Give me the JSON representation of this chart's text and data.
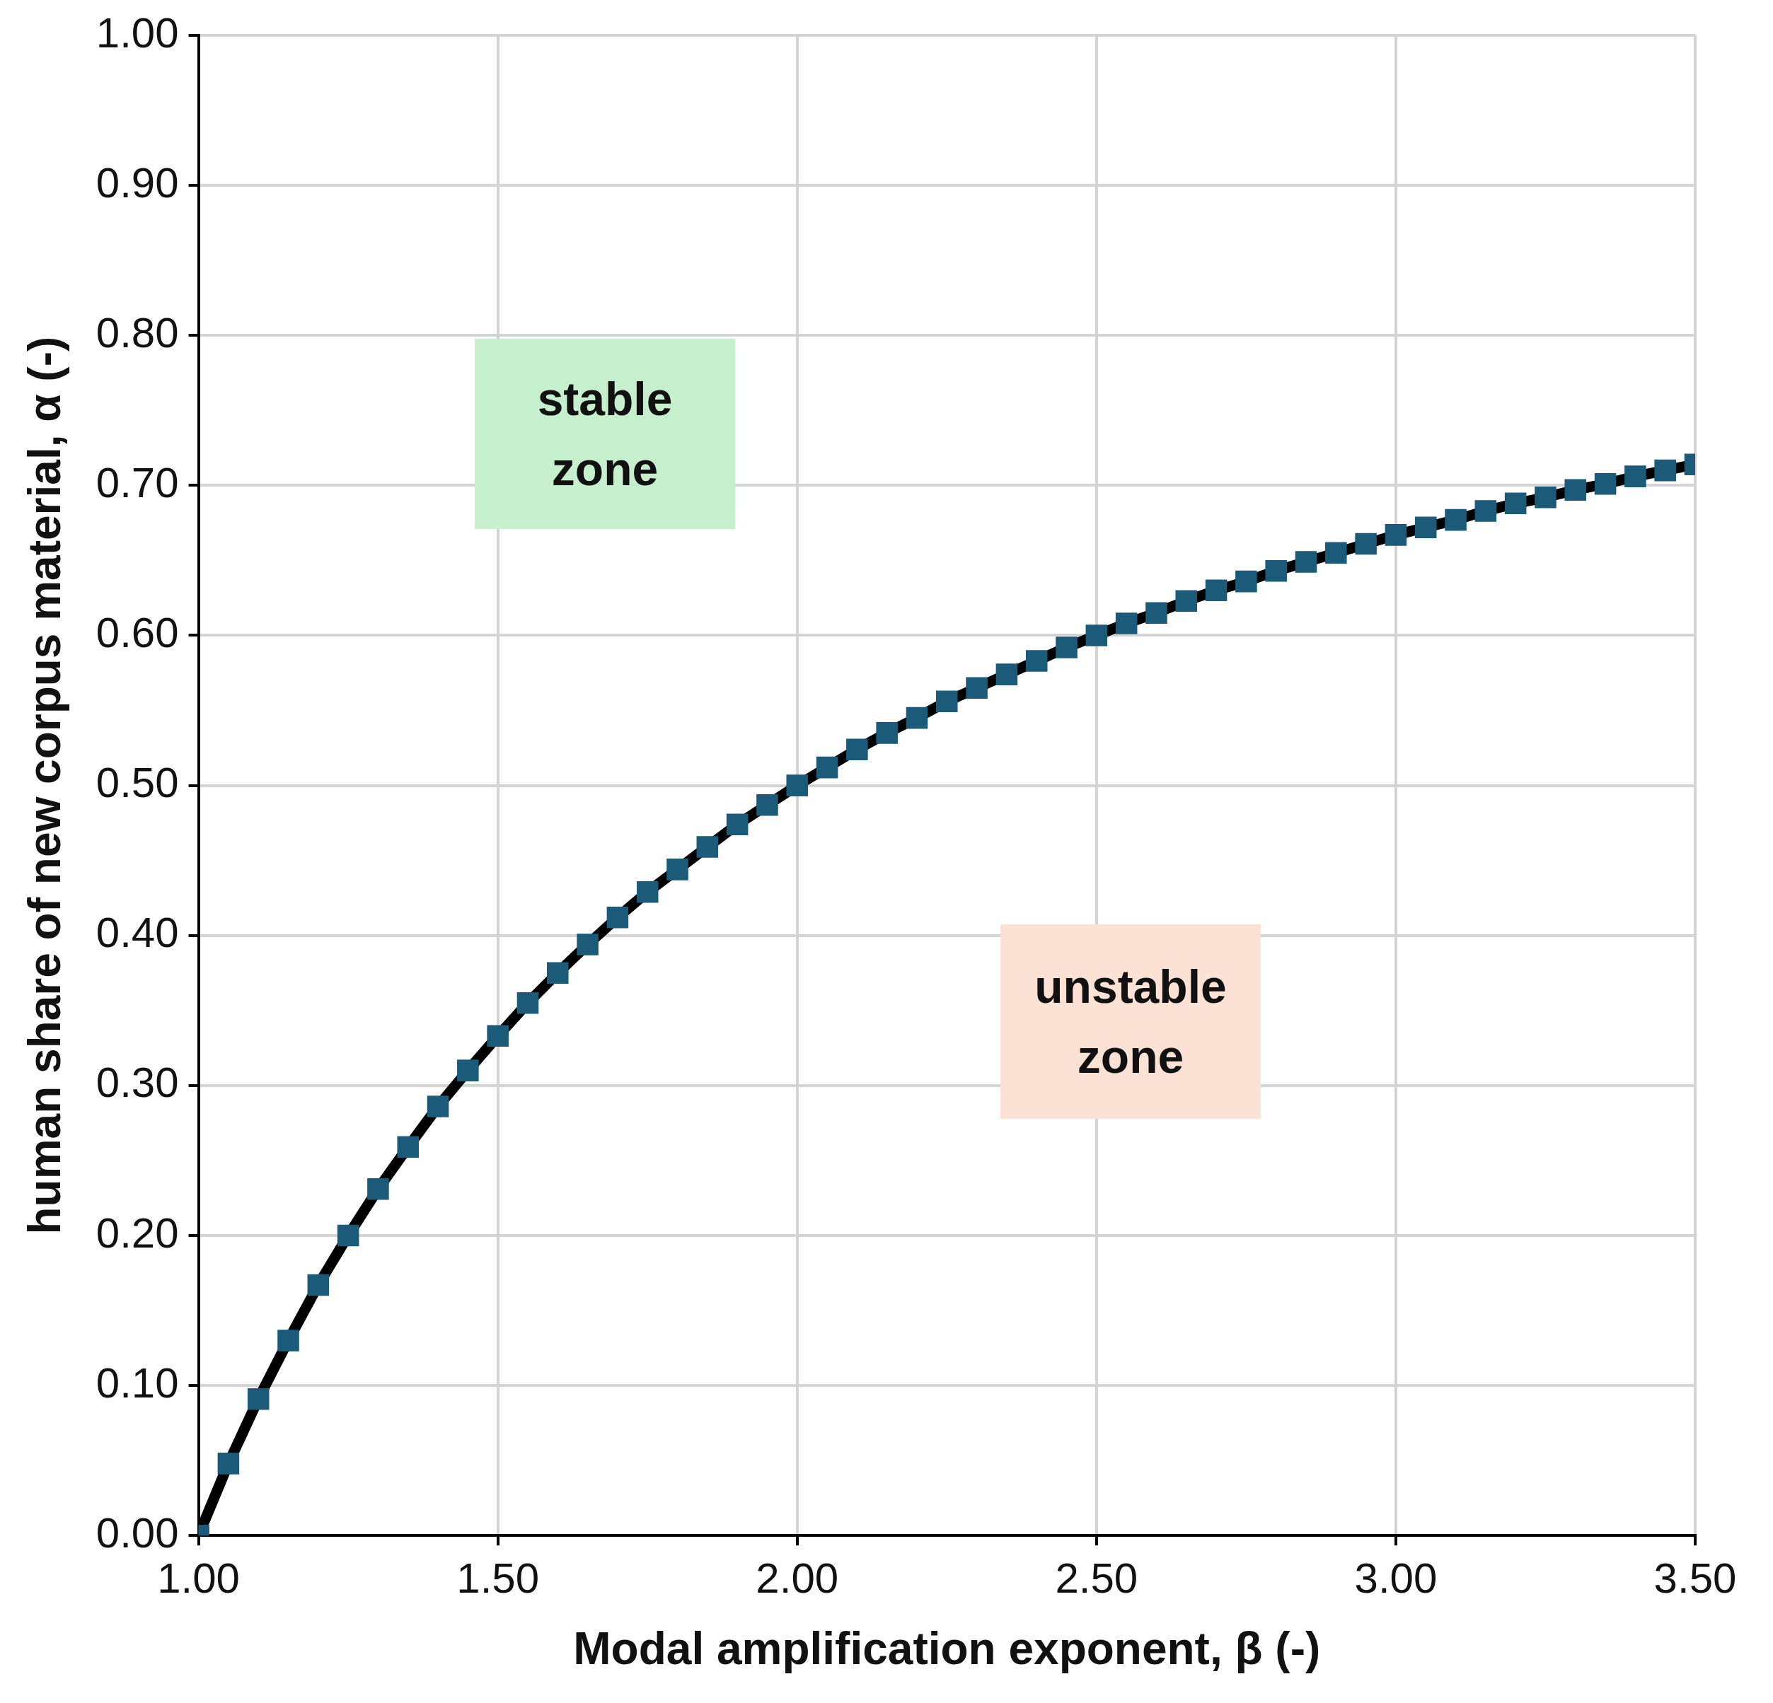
{
  "chart_data": {
    "type": "line",
    "xlabel": "Modal amplification exponent, β (-)",
    "ylabel": "human share of new corpus material, α (-)",
    "x": [
      1.0,
      1.05,
      1.1,
      1.15,
      1.2,
      1.25,
      1.3,
      1.35,
      1.4,
      1.45,
      1.5,
      1.55,
      1.6,
      1.65,
      1.7,
      1.75,
      1.8,
      1.85,
      1.9,
      1.95,
      2.0,
      2.05,
      2.1,
      2.15,
      2.2,
      2.25,
      2.3,
      2.35,
      2.4,
      2.45,
      2.5,
      2.55,
      2.6,
      2.65,
      2.7,
      2.75,
      2.8,
      2.85,
      2.9,
      2.95,
      3.0,
      3.05,
      3.1,
      3.15,
      3.2,
      3.25,
      3.3,
      3.35,
      3.4,
      3.45,
      3.5
    ],
    "series": [
      {
        "color": "#1b5a78",
        "values": [
          0.0,
          0.048,
          0.091,
          0.13,
          0.167,
          0.2,
          0.231,
          0.259,
          0.286,
          0.31,
          0.333,
          0.355,
          0.375,
          0.394,
          0.412,
          0.429,
          0.444,
          0.459,
          0.474,
          0.487,
          0.5,
          0.512,
          0.524,
          0.535,
          0.545,
          0.556,
          0.565,
          0.574,
          0.583,
          0.592,
          0.6,
          0.608,
          0.615,
          0.623,
          0.63,
          0.636,
          0.643,
          0.649,
          0.655,
          0.661,
          0.667,
          0.672,
          0.677,
          0.683,
          0.688,
          0.692,
          0.697,
          0.701,
          0.706,
          0.71,
          0.714
        ]
      }
    ],
    "xlim": [
      1.0,
      3.5
    ],
    "xticks": [
      {
        "value": 1.0,
        "label": "1.00"
      },
      {
        "value": 1.5,
        "label": "1.50"
      },
      {
        "value": 2.0,
        "label": "2.00"
      },
      {
        "value": 2.5,
        "label": "2.50"
      },
      {
        "value": 3.0,
        "label": "3.00"
      },
      {
        "value": 3.5,
        "label": "3.50"
      }
    ],
    "ylim": [
      0,
      1
    ],
    "yticks": [
      {
        "value": 0,
        "label": "0.00"
      },
      {
        "value": 0.1,
        "label": "0.10"
      },
      {
        "value": 0.2,
        "label": "0.20"
      },
      {
        "value": 0.3,
        "label": "0.30"
      },
      {
        "value": 0.4,
        "label": "0.40"
      },
      {
        "value": 0.5,
        "label": "0.50"
      },
      {
        "value": 0.6,
        "label": "0.60"
      },
      {
        "value": 0.7,
        "label": "0.70"
      },
      {
        "value": 0.8,
        "label": "0.80"
      },
      {
        "value": 0.9,
        "label": "0.90"
      },
      {
        "value": 1.0,
        "label": "1.00"
      }
    ],
    "annotations": [
      "stable zone",
      "unstable zone"
    ],
    "grid": true,
    "legend": false,
    "marker": "square",
    "line_style": "solid"
  }
}
